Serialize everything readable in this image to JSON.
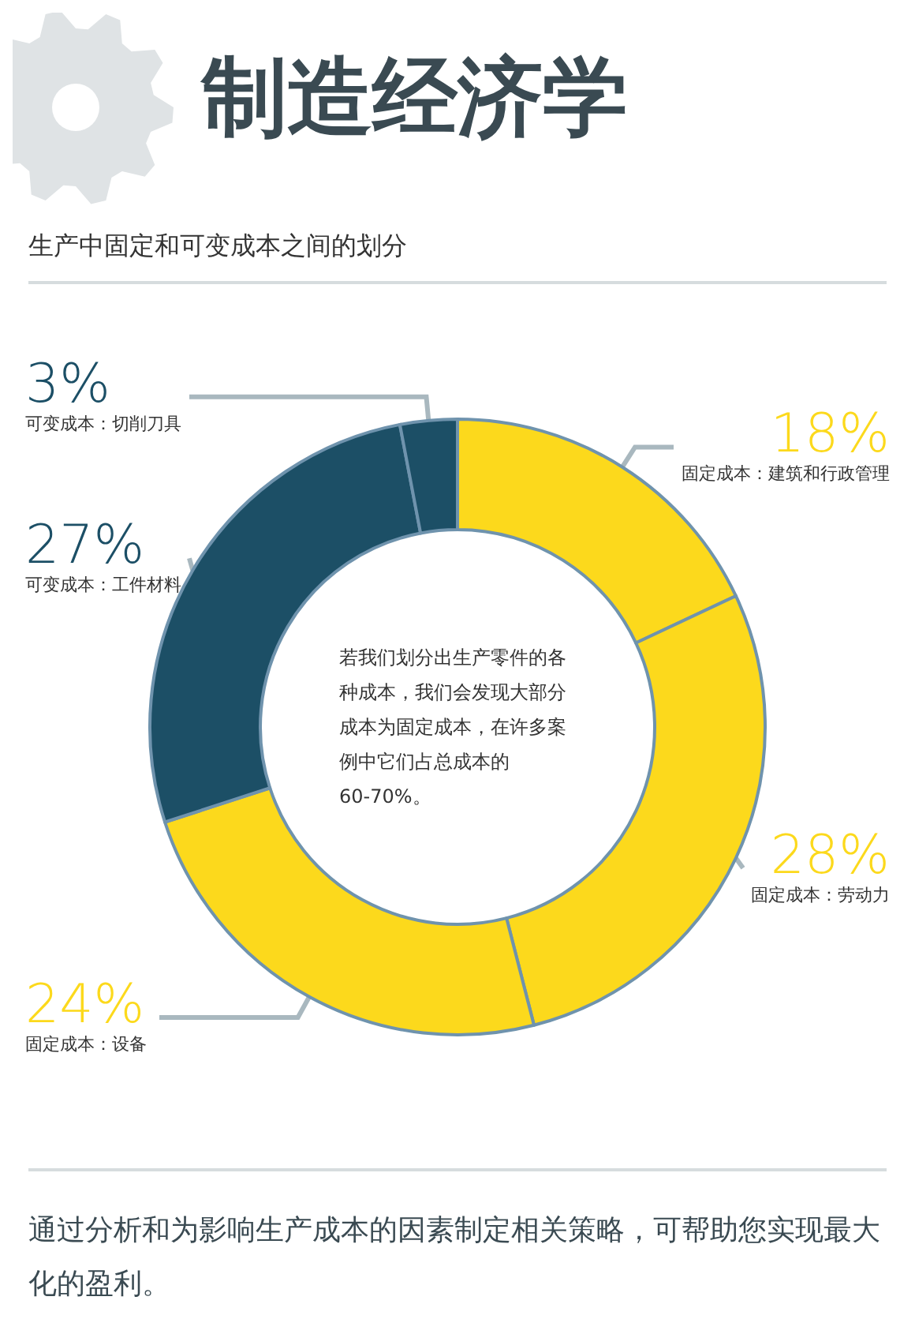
{
  "chart_data": {
    "type": "donut",
    "title": "制造经济学",
    "subtitle": "生产中固定和可变成本之间的划分",
    "categories": [
      "固定成本：建筑和行政管理",
      "固定成本：劳动力",
      "固定成本：设备",
      "可变成本：工件材料",
      "可变成本：切削刀具"
    ],
    "values": [
      18,
      28,
      24,
      27,
      3
    ],
    "colors": [
      "#fcd91c",
      "#fcd91c",
      "#fcd91c",
      "#1c4f66",
      "#1c4f66"
    ],
    "value_labels": [
      "18%",
      "28%",
      "24%",
      "27%",
      "3%"
    ],
    "annotations": [
      "若我们划分出生产零件的各种成本，我们会发现大部分成本为固定成本，在许多案例中它们占总成本的60-70%。",
      "通过分析和为影响生产成本的因素制定相关策略，可帮助您实现最大化的盈利。"
    ],
    "legend": false
  }
}
